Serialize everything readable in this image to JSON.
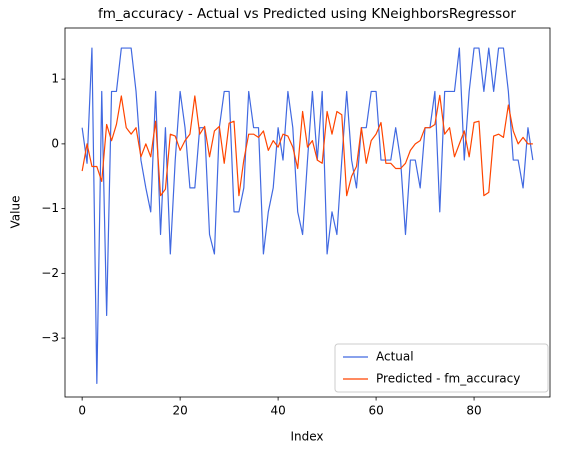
{
  "chart_data": {
    "type": "line",
    "title": "fm_accuracy - Actual vs Predicted using KNeighborsRegressor",
    "x_label": "Index",
    "y_label": "Value",
    "x": [
      0,
      1,
      2,
      3,
      4,
      5,
      6,
      7,
      8,
      9,
      10,
      11,
      12,
      13,
      14,
      15,
      16,
      17,
      18,
      19,
      20,
      21,
      22,
      23,
      24,
      25,
      26,
      27,
      28,
      29,
      30,
      31,
      32,
      33,
      34,
      35,
      36,
      37,
      38,
      39,
      40,
      41,
      42,
      43,
      44,
      45,
      46,
      47,
      48,
      49,
      50,
      51,
      52,
      53,
      54,
      55,
      56,
      57,
      58,
      59,
      60,
      61,
      62,
      63,
      64,
      65,
      66,
      67,
      68,
      69,
      70,
      71,
      72,
      73,
      74,
      75,
      76,
      77,
      78,
      79,
      80,
      81,
      82,
      83,
      84,
      85,
      86,
      87,
      88,
      89,
      90,
      91,
      92
    ],
    "series": [
      {
        "name": "Actual",
        "color": "#4169e1",
        "values": [
          0.25,
          -0.3,
          1.48,
          -3.7,
          0.81,
          -2.65,
          0.81,
          0.81,
          1.48,
          1.48,
          1.48,
          0.81,
          -0.25,
          -0.68,
          -1.05,
          0.81,
          -1.4,
          0.25,
          -1.7,
          -0.25,
          0.81,
          0.25,
          -0.68,
          -0.68,
          0.25,
          0.25,
          -1.4,
          -1.7,
          0.25,
          0.81,
          0.81,
          -1.05,
          -1.05,
          -0.68,
          0.81,
          0.25,
          0.25,
          -1.7,
          -1.05,
          -0.68,
          0.25,
          -0.25,
          0.81,
          0.25,
          -1.05,
          -1.4,
          -0.25,
          0.81,
          -0.25,
          0.81,
          -1.7,
          -1.05,
          -1.4,
          -0.25,
          0.81,
          -0.25,
          -0.68,
          0.25,
          0.25,
          0.81,
          0.81,
          -0.25,
          -0.25,
          -0.25,
          0.25,
          -0.25,
          -1.4,
          -0.25,
          -0.25,
          -0.68,
          0.25,
          0.25,
          0.81,
          -1.05,
          0.81,
          0.81,
          0.81,
          1.48,
          -0.25,
          0.81,
          1.48,
          1.48,
          0.81,
          1.48,
          0.81,
          1.48,
          1.48,
          0.81,
          -0.25,
          -0.25,
          -0.68,
          0.25,
          -0.25
        ]
      },
      {
        "name": "Predicted - fm_accuracy",
        "color": "#ff4500",
        "values": [
          -0.42,
          0.0,
          -0.35,
          -0.35,
          -0.58,
          0.3,
          0.05,
          0.3,
          0.74,
          0.25,
          0.15,
          0.25,
          -0.2,
          0.0,
          -0.2,
          0.35,
          -0.8,
          -0.7,
          0.15,
          0.12,
          -0.1,
          0.05,
          0.15,
          0.74,
          0.15,
          0.27,
          -0.2,
          0.2,
          0.27,
          -0.3,
          0.32,
          0.35,
          -0.8,
          -0.25,
          0.15,
          0.15,
          0.1,
          0.2,
          -0.1,
          0.05,
          -0.05,
          0.15,
          0.12,
          -0.05,
          -0.38,
          0.5,
          -0.05,
          0.05,
          -0.25,
          -0.3,
          0.5,
          0.15,
          0.5,
          0.45,
          -0.8,
          -0.5,
          -0.35,
          0.25,
          -0.3,
          0.05,
          0.15,
          0.33,
          -0.3,
          -0.3,
          -0.38,
          -0.38,
          -0.3,
          -0.1,
          0.0,
          0.05,
          0.25,
          0.25,
          0.3,
          0.75,
          0.15,
          0.25,
          -0.2,
          0.0,
          0.2,
          -0.2,
          0.33,
          0.35,
          -0.8,
          -0.75,
          0.12,
          0.15,
          0.1,
          0.6,
          0.2,
          0.0,
          0.1,
          0.0,
          0.0
        ]
      }
    ],
    "xlim": [
      -3.5,
      95.5
    ],
    "ylim": [
      -3.91,
      1.79
    ],
    "xticks": [
      0,
      20,
      40,
      60,
      80
    ],
    "yticks": [
      {
        "value": -3,
        "label": "−3"
      },
      {
        "value": -2,
        "label": "−2"
      },
      {
        "value": -1,
        "label": "−1"
      },
      0,
      1
    ],
    "legend": "lower right"
  }
}
